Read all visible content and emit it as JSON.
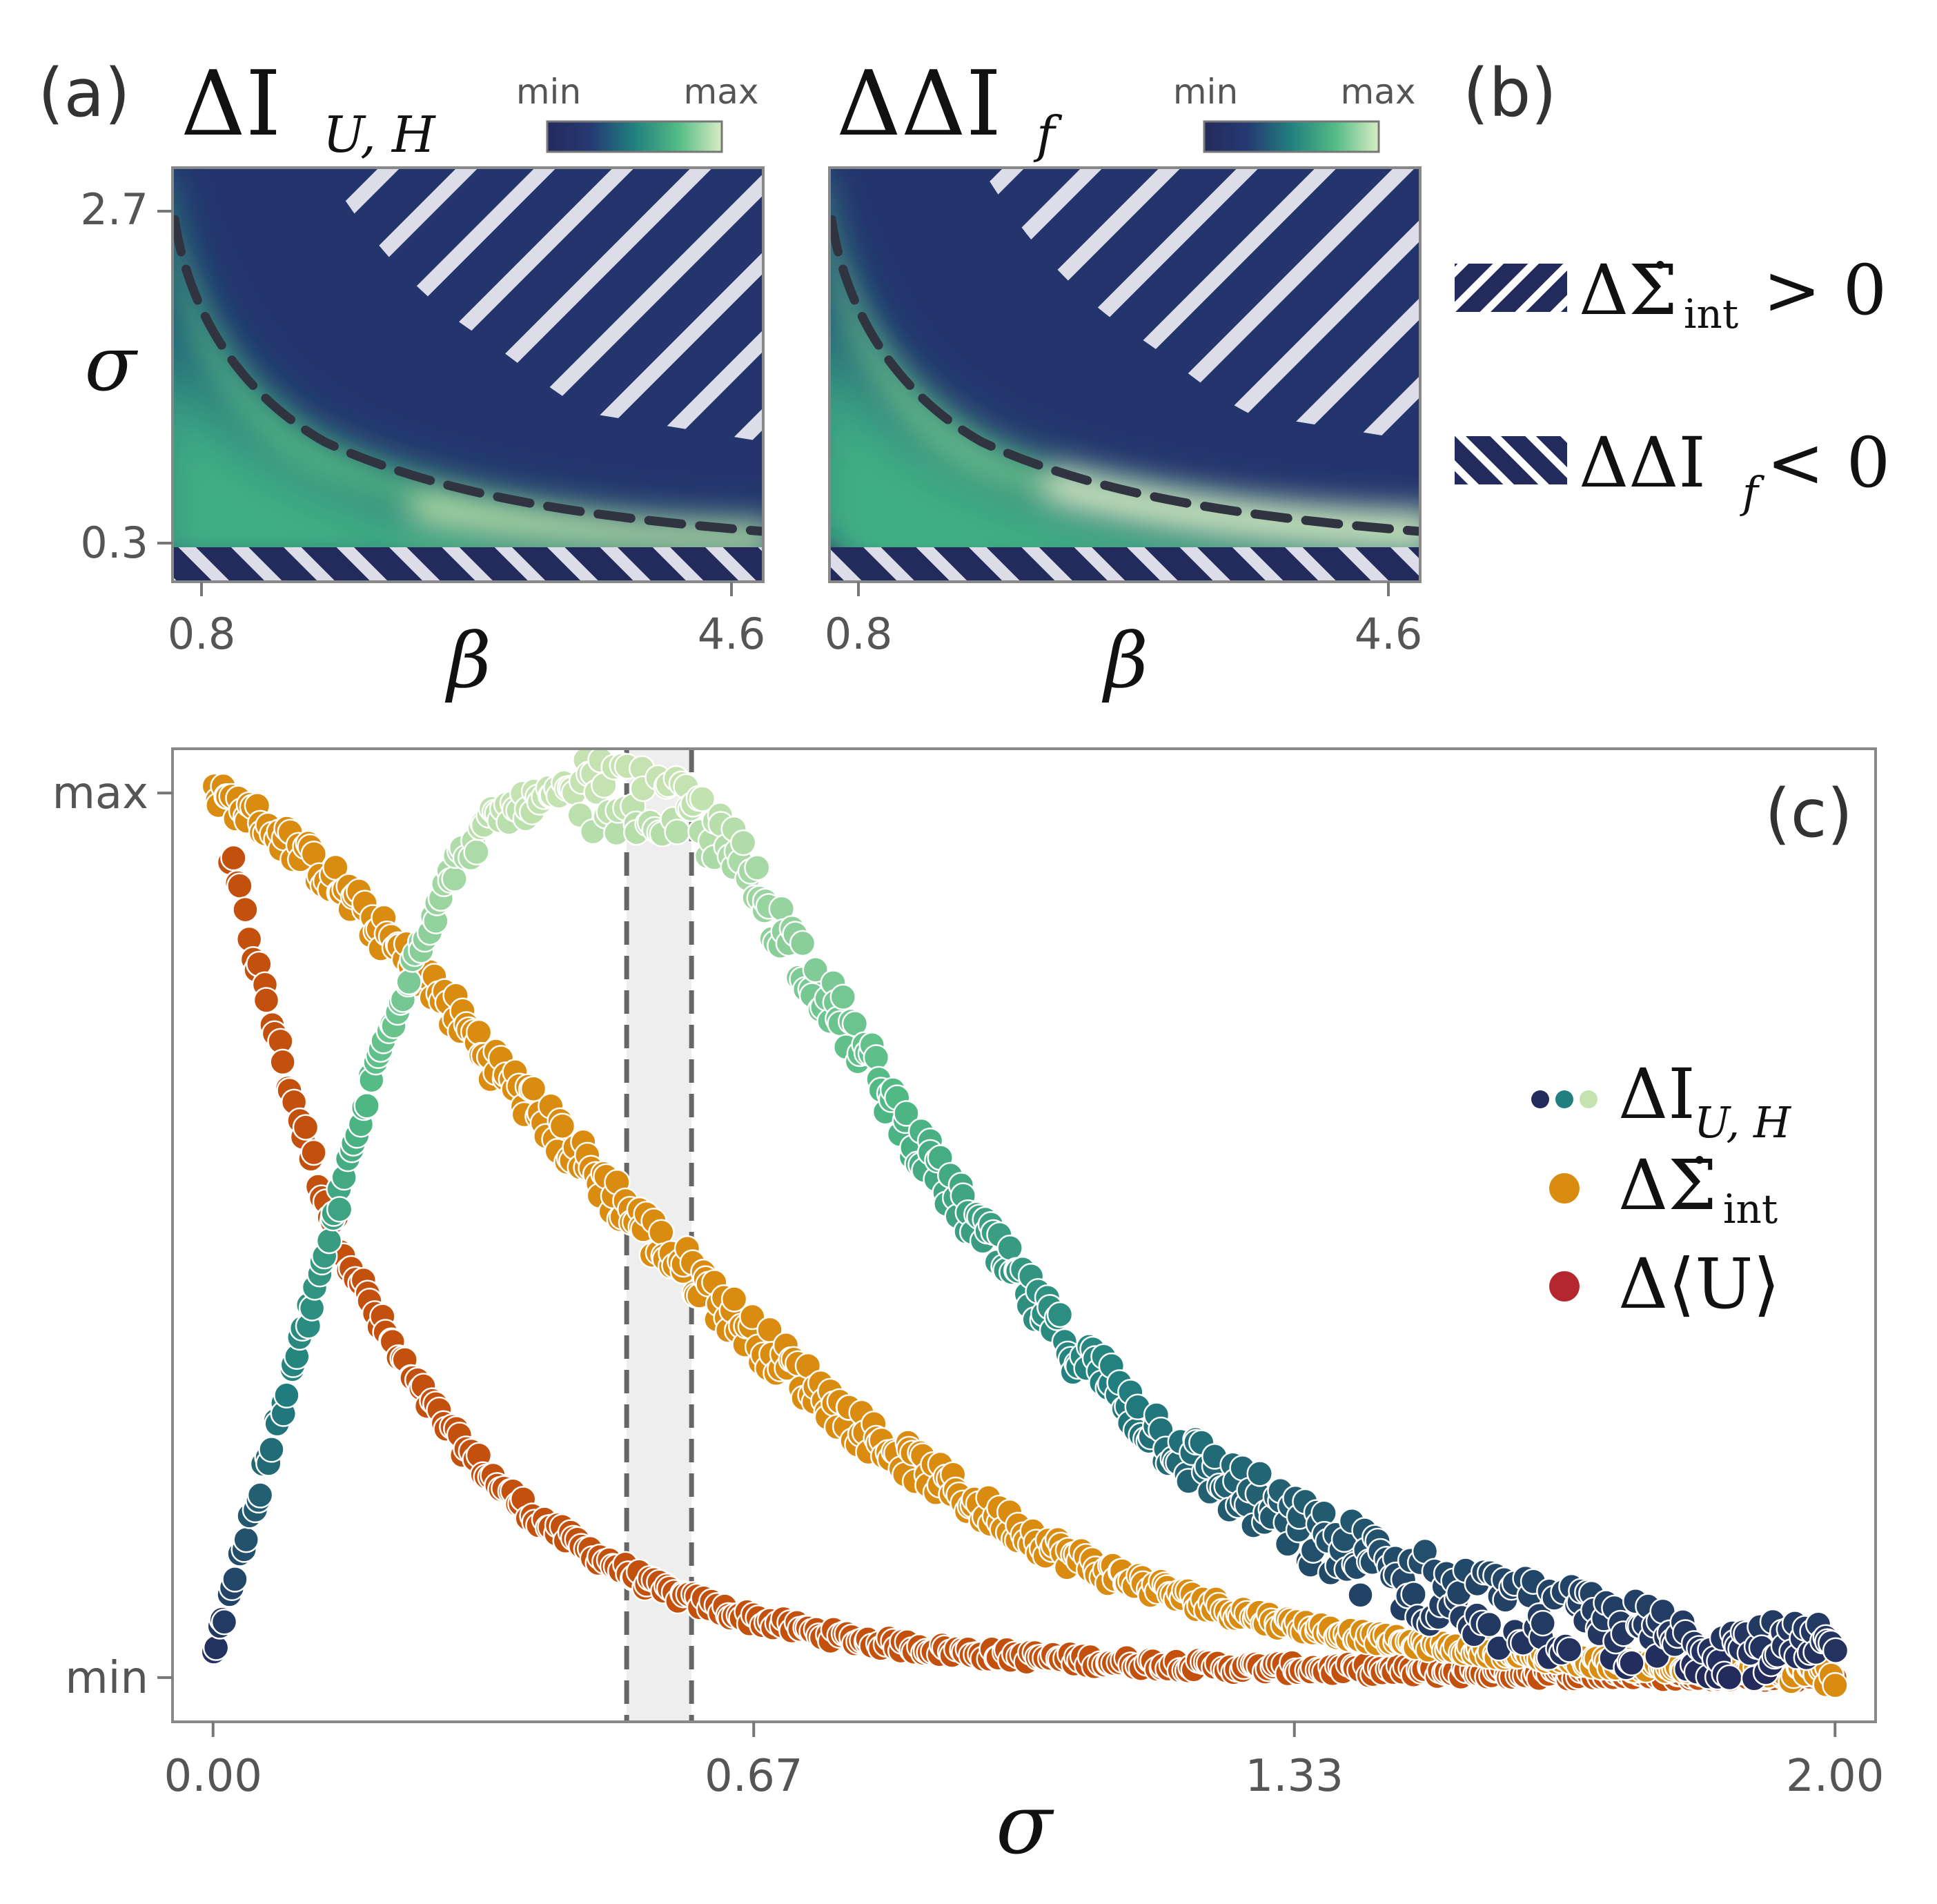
{
  "panel_labels": {
    "a": "(a)",
    "b": "(b)",
    "c": "(c)"
  },
  "heatmaps": {
    "a": {
      "title": "ΔI",
      "title_sub": "U, H",
      "x_symbol": "β",
      "y_symbol": "σ",
      "x_ticks": [
        "0.8",
        "4.6"
      ],
      "y_ticks": [
        "2.7",
        "0.3"
      ]
    },
    "b": {
      "title": "ΔΔI",
      "title_sub": "f",
      "x_symbol": "β",
      "x_ticks": [
        "0.8",
        "4.6"
      ]
    },
    "colorbar": {
      "min_label": "min",
      "max_label": "max"
    }
  },
  "hatch_legend": {
    "item1": {
      "text": "ΔΣ̇",
      "sub": "int",
      "rel": "> 0"
    },
    "item2": {
      "text": "ΔΔI",
      "sub": "f",
      "rel": "< 0"
    }
  },
  "colors": {
    "navy": "#232a5c",
    "teal": "#21807f",
    "green": "#52bb84",
    "pale": "#c4e3b0",
    "orange": "#d98c10",
    "red": "#c4500d",
    "legend_red": "#b5272f",
    "hatch": "#dcdde8",
    "dash": "#2f3440",
    "band": "#eeeeee"
  },
  "chart_data": {
    "type": "scatter",
    "xlabel": "σ",
    "ylabel": "",
    "x_ticks": [
      "0.00",
      "0.67",
      "1.33",
      "2.00"
    ],
    "y_ticks": [
      "max",
      "min"
    ],
    "xlim": [
      -0.05,
      2.05
    ],
    "ylim": [
      -0.05,
      1.05
    ],
    "vertical_band": {
      "x0": 0.51,
      "x1": 0.59,
      "style": "dashed edges, light grey fill"
    },
    "series": [
      {
        "name": "ΔI",
        "name_sub": "U, H",
        "color_gradient": [
          "#232a5c",
          "#21807f",
          "#52bb84",
          "#c4e3b0"
        ],
        "x": [
          0.0,
          0.05,
          0.1,
          0.15,
          0.2,
          0.25,
          0.3,
          0.35,
          0.4,
          0.45,
          0.5,
          0.55,
          0.6,
          0.65,
          0.7,
          0.75,
          0.8,
          0.85,
          0.9,
          0.95,
          1.0,
          1.05,
          1.1,
          1.15,
          1.2,
          1.25,
          1.3,
          1.35,
          1.4,
          1.45,
          1.5,
          1.55,
          1.6,
          1.65,
          1.7,
          1.75,
          1.8,
          1.85,
          1.9,
          1.95,
          2.0
        ],
        "y": [
          0.03,
          0.19,
          0.35,
          0.52,
          0.69,
          0.82,
          0.92,
          0.975,
          0.99,
          1.0,
          0.995,
          0.985,
          0.97,
          0.92,
          0.85,
          0.78,
          0.71,
          0.63,
          0.56,
          0.5,
          0.44,
          0.38,
          0.34,
          0.29,
          0.25,
          0.22,
          0.19,
          0.16,
          0.14,
          0.12,
          0.1,
          0.085,
          0.075,
          0.065,
          0.055,
          0.048,
          0.042,
          0.037,
          0.033,
          0.03,
          0.03
        ]
      },
      {
        "name": "ΔΣ̇",
        "name_sub": "int",
        "color": "#d98c10",
        "x": [
          0.0,
          0.05,
          0.1,
          0.15,
          0.2,
          0.25,
          0.3,
          0.35,
          0.4,
          0.45,
          0.5,
          0.55,
          0.6,
          0.65,
          0.7,
          0.75,
          0.8,
          0.85,
          0.9,
          0.95,
          1.0,
          1.05,
          1.1,
          1.15,
          1.2,
          1.25,
          1.3,
          1.35,
          1.4,
          1.45,
          1.5,
          1.55,
          1.6,
          1.65,
          1.7,
          1.75,
          1.8,
          1.85,
          1.9,
          1.95,
          2.0
        ],
        "y": [
          1.0,
          0.975,
          0.94,
          0.9,
          0.85,
          0.8,
          0.75,
          0.69,
          0.64,
          0.59,
          0.54,
          0.49,
          0.45,
          0.4,
          0.36,
          0.32,
          0.28,
          0.25,
          0.22,
          0.19,
          0.165,
          0.14,
          0.12,
          0.105,
          0.09,
          0.077,
          0.066,
          0.057,
          0.049,
          0.042,
          0.036,
          0.031,
          0.026,
          0.022,
          0.018,
          0.014,
          0.011,
          0.008,
          0.006,
          0.004,
          0.003
        ]
      },
      {
        "name": "Δ⟨U⟩",
        "legend_color": "#b5272f",
        "color": "#c4500d",
        "x": [
          0.02,
          0.05,
          0.1,
          0.15,
          0.2,
          0.25,
          0.3,
          0.35,
          0.4,
          0.45,
          0.5,
          0.55,
          0.6,
          0.65,
          0.7,
          0.75,
          0.8,
          0.85,
          0.9,
          0.95,
          1.0,
          1.05,
          1.1,
          1.15,
          1.2,
          1.25,
          1.3,
          1.35,
          1.4,
          1.45,
          1.5,
          1.55,
          1.6,
          1.65,
          1.7,
          1.75,
          1.8,
          1.85,
          1.9,
          1.95,
          2.0
        ],
        "y": [
          0.93,
          0.82,
          0.65,
          0.51,
          0.41,
          0.33,
          0.27,
          0.22,
          0.18,
          0.15,
          0.125,
          0.1,
          0.085,
          0.07,
          0.06,
          0.05,
          0.042,
          0.036,
          0.031,
          0.027,
          0.024,
          0.021,
          0.018,
          0.016,
          0.014,
          0.012,
          0.011,
          0.01,
          0.009,
          0.008,
          0.007,
          0.006,
          0.005,
          0.005,
          0.004,
          0.004,
          0.003,
          0.003,
          0.003,
          0.002,
          0.002
        ]
      }
    ]
  }
}
